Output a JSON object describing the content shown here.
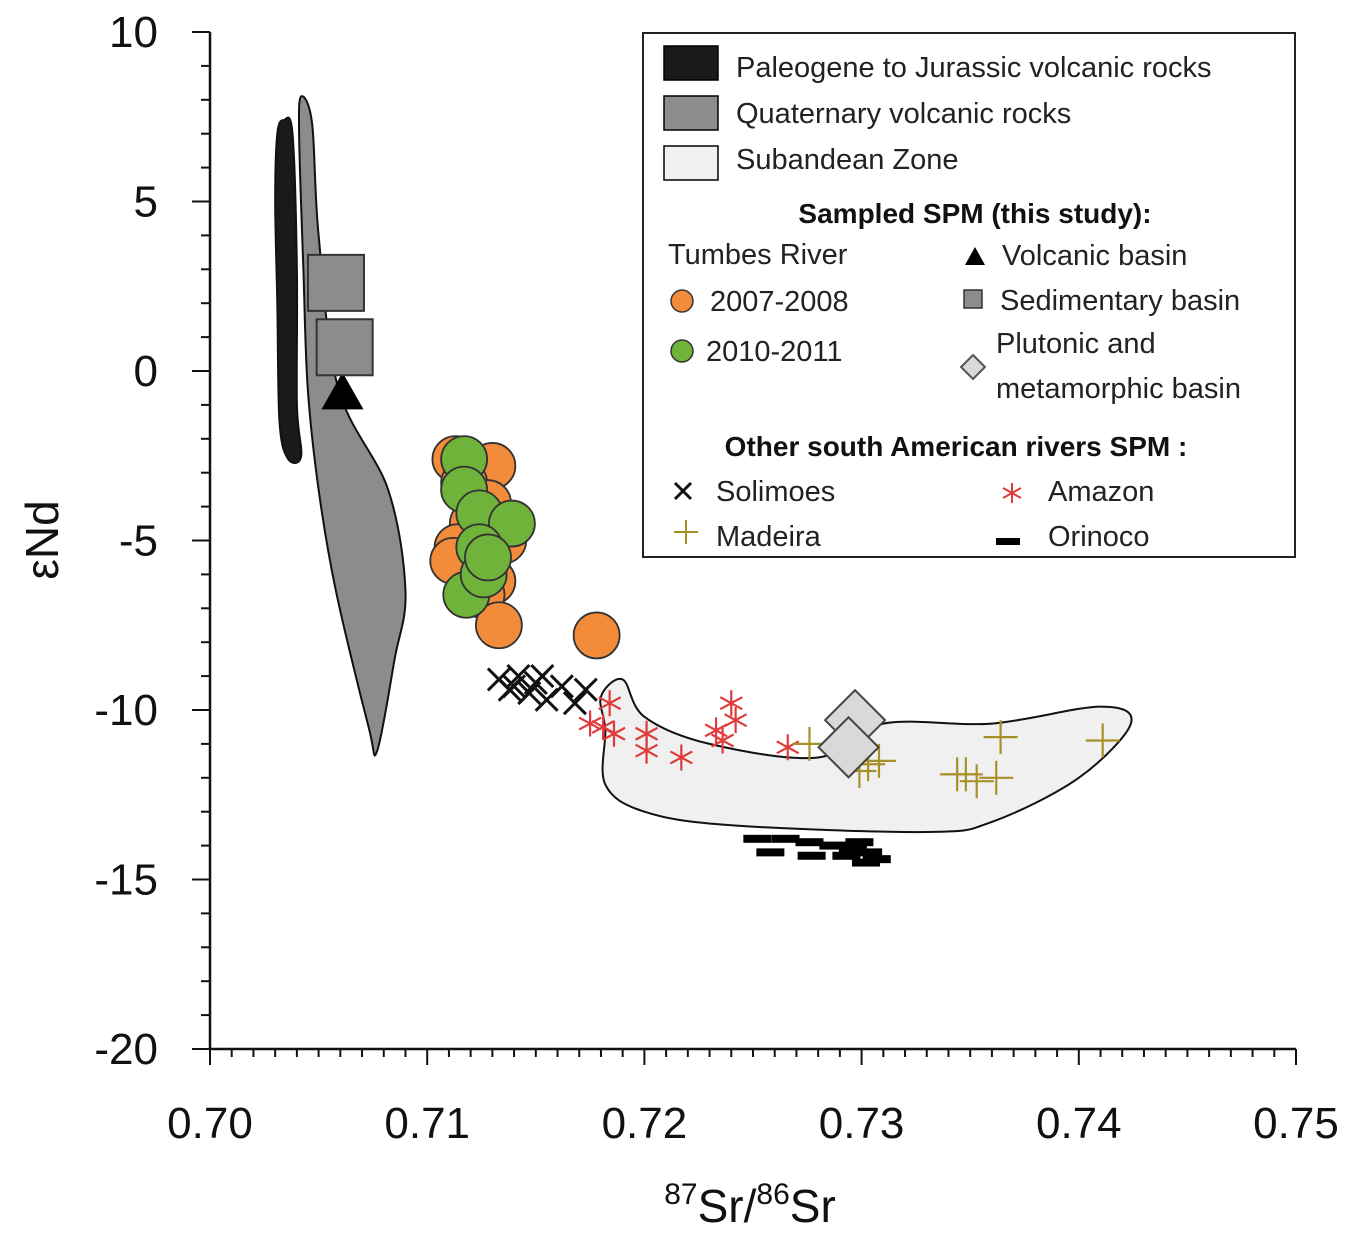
{
  "chart_data": {
    "type": "scatter",
    "title": "",
    "xlabel": {
      "sup1": "87",
      "base1": "Sr/",
      "sup2": "86",
      "base2": "Sr"
    },
    "ylabel": "εNd",
    "xlim": [
      0.7,
      0.75
    ],
    "ylim": [
      -20,
      10
    ],
    "x_ticks": [
      "0.70",
      "0.71",
      "0.72",
      "0.73",
      "0.74",
      "0.75"
    ],
    "y_ticks": [
      "10",
      "5",
      "0",
      "-5",
      "-10",
      "-15",
      "-20"
    ],
    "grid": false,
    "legend_position": "top-right",
    "fields": [
      {
        "name": "Paleogene to Jurassic volcanic rocks",
        "color": "#1a1a1a",
        "outline": [
          [
            0.7034,
            7.4
          ],
          [
            0.7038,
            7.0
          ],
          [
            0.704,
            3.0
          ],
          [
            0.704,
            -1.0
          ],
          [
            0.7042,
            -2.5
          ],
          [
            0.7036,
            -2.6
          ],
          [
            0.7032,
            -1.5
          ],
          [
            0.7031,
            2.0
          ],
          [
            0.703,
            5.0
          ],
          [
            0.7031,
            7.0
          ]
        ]
      },
      {
        "name": "Quaternary volcanic rocks",
        "color": "#8c8c8c",
        "outline": [
          [
            0.7042,
            8.1
          ],
          [
            0.7047,
            7.3
          ],
          [
            0.705,
            4.0
          ],
          [
            0.7059,
            -0.5
          ],
          [
            0.7082,
            -3.5
          ],
          [
            0.709,
            -6.5
          ],
          [
            0.7085,
            -8.5
          ],
          [
            0.7077,
            -11.2
          ],
          [
            0.7073,
            -10.5
          ],
          [
            0.7058,
            -6.5
          ],
          [
            0.705,
            -3.5
          ],
          [
            0.7045,
            -0.5
          ],
          [
            0.7043,
            3.0
          ],
          [
            0.7041,
            7.0
          ]
        ]
      },
      {
        "name": "Subandean Zone",
        "color": "#f0f0f0",
        "outline": [
          [
            0.718,
            -9.6
          ],
          [
            0.719,
            -9.1
          ],
          [
            0.72,
            -10.2
          ],
          [
            0.723,
            -11.0
          ],
          [
            0.728,
            -11.4
          ],
          [
            0.731,
            -10.4
          ],
          [
            0.736,
            -10.4
          ],
          [
            0.741,
            -9.9
          ],
          [
            0.7424,
            -10.4
          ],
          [
            0.74,
            -12.0
          ],
          [
            0.736,
            -13.3
          ],
          [
            0.733,
            -13.6
          ],
          [
            0.724,
            -13.4
          ],
          [
            0.72,
            -13.0
          ],
          [
            0.7182,
            -12.2
          ],
          [
            0.7182,
            -10.6
          ]
        ]
      }
    ],
    "series": [
      {
        "name": "2007-2008",
        "group": "Tumbes River",
        "marker": "circle",
        "color": "#f28c3a",
        "points": [
          [
            0.7113,
            -2.6
          ],
          [
            0.713,
            -2.8
          ],
          [
            0.7117,
            -3.3
          ],
          [
            0.7128,
            -3.9
          ],
          [
            0.7121,
            -4.5
          ],
          [
            0.7114,
            -5.2
          ],
          [
            0.7135,
            -5.0
          ],
          [
            0.7112,
            -5.6
          ],
          [
            0.713,
            -6.2
          ],
          [
            0.7125,
            -6.6
          ],
          [
            0.7133,
            -7.5
          ],
          [
            0.7178,
            -7.8
          ]
        ]
      },
      {
        "name": "2010-2011",
        "group": "Tumbes River",
        "marker": "circle",
        "color": "#6fb33a",
        "points": [
          [
            0.7117,
            -2.6
          ],
          [
            0.7117,
            -3.5
          ],
          [
            0.7124,
            -4.2
          ],
          [
            0.7139,
            -4.5
          ],
          [
            0.7124,
            -5.2
          ],
          [
            0.7118,
            -6.6
          ],
          [
            0.7126,
            -6.0
          ],
          [
            0.7128,
            -5.5
          ]
        ]
      },
      {
        "name": "Volcanic basin",
        "group": "Sampled SPM (this study)",
        "marker": "triangle",
        "color": "#000000",
        "points": [
          [
            0.7061,
            -0.6
          ]
        ]
      },
      {
        "name": "Sedimentary basin",
        "group": "Sampled SPM (this study)",
        "marker": "square",
        "color": "#8c8c8c",
        "points": [
          [
            0.7058,
            2.6
          ],
          [
            0.7062,
            0.7
          ]
        ]
      },
      {
        "name": "Plutonic and metamorphic basin",
        "group": "Sampled SPM (this study)",
        "marker": "diamond",
        "color": "#d9d9d9",
        "points": [
          [
            0.7297,
            -10.3
          ],
          [
            0.7294,
            -11.1
          ]
        ]
      },
      {
        "name": "Solimoes",
        "group": "Other south American rivers SPM",
        "marker": "x",
        "color": "#111111",
        "points": [
          [
            0.7133,
            -9.1
          ],
          [
            0.7138,
            -9.4
          ],
          [
            0.7142,
            -9.0
          ],
          [
            0.7147,
            -9.5
          ],
          [
            0.715,
            -9.2
          ],
          [
            0.7155,
            -9.7
          ],
          [
            0.7168,
            -9.8
          ],
          [
            0.7173,
            -9.4
          ],
          [
            0.714,
            -9.3
          ],
          [
            0.7162,
            -9.3
          ],
          [
            0.7153,
            -9.0
          ]
        ]
      },
      {
        "name": "Amazon",
        "group": "Other south American rivers SPM",
        "marker": "asterisk",
        "color": "#e03a3a",
        "points": [
          [
            0.7175,
            -10.4
          ],
          [
            0.7181,
            -10.5
          ],
          [
            0.7186,
            -10.7
          ],
          [
            0.7184,
            -9.8
          ],
          [
            0.7201,
            -10.7
          ],
          [
            0.7201,
            -11.2
          ],
          [
            0.7217,
            -11.4
          ],
          [
            0.7233,
            -10.6
          ],
          [
            0.7236,
            -10.9
          ],
          [
            0.724,
            -9.8
          ],
          [
            0.7242,
            -10.3
          ],
          [
            0.7266,
            -11.1
          ]
        ]
      },
      {
        "name": "Madeira",
        "group": "Other south American rivers SPM",
        "marker": "plus",
        "color": "#a89028",
        "points": [
          [
            0.7276,
            -11.0
          ],
          [
            0.7299,
            -11.8
          ],
          [
            0.7303,
            -11.6
          ],
          [
            0.7308,
            -11.5
          ],
          [
            0.7344,
            -11.9
          ],
          [
            0.7348,
            -11.9
          ],
          [
            0.7353,
            -12.1
          ],
          [
            0.7362,
            -12.0
          ],
          [
            0.7364,
            -10.8
          ],
          [
            0.7411,
            -10.9
          ]
        ]
      },
      {
        "name": "Orinoco",
        "group": "Other south American rivers SPM",
        "marker": "dash",
        "color": "#000000",
        "points": [
          [
            0.7252,
            -13.8
          ],
          [
            0.7265,
            -13.8
          ],
          [
            0.7276,
            -13.9
          ],
          [
            0.7287,
            -14.0
          ],
          [
            0.7296,
            -14.1
          ],
          [
            0.7303,
            -14.2
          ],
          [
            0.7258,
            -14.2
          ],
          [
            0.7277,
            -14.3
          ],
          [
            0.7293,
            -14.3
          ],
          [
            0.7302,
            -14.5
          ],
          [
            0.7307,
            -14.4
          ],
          [
            0.7299,
            -13.9
          ]
        ]
      }
    ],
    "legend": {
      "fields": [
        "Paleogene to Jurassic volcanic rocks",
        "Quaternary volcanic rocks",
        "Subandean Zone"
      ],
      "sampled_heading": "Sampled SPM (this study):",
      "tumbes_heading": "Tumbes River",
      "tumbes_years": [
        "2007-2008",
        "2010-2011"
      ],
      "basins": [
        "Volcanic basin",
        "Sedimentary basin"
      ],
      "plutonic_line1": "Plutonic and",
      "plutonic_line2": "metamorphic basin",
      "rivers_heading": "Other south American rivers SPM :",
      "rivers": [
        "Solimoes",
        "Amazon",
        "Madeira",
        "Orinoco"
      ]
    }
  }
}
